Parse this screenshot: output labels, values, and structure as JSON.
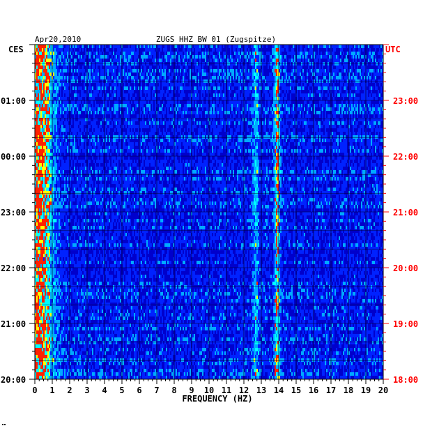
{
  "chart_data": {
    "type": "heatmap",
    "title": "ZUGS HHZ BW 01 (Zugspitze)",
    "date": "Apr20,2010",
    "xlabel": "FREQUENCY (HZ)",
    "xlim": [
      0,
      20
    ],
    "x_ticks": [
      "0",
      "1",
      "2",
      "3",
      "4",
      "5",
      "6",
      "7",
      "8",
      "9",
      "10",
      "11",
      "12",
      "13",
      "14",
      "15",
      "16",
      "17",
      "18",
      "19",
      "20"
    ],
    "left_axis": {
      "label": "CES",
      "ticks": [
        "01:00",
        "00:00",
        "23:00",
        "22:00",
        "21:00",
        "20:00"
      ]
    },
    "right_axis": {
      "label": "UTC",
      "ticks": [
        "23:00",
        "22:00",
        "21:00",
        "20:00",
        "19:00",
        "18:00"
      ]
    },
    "spectral_features": [
      {
        "frequency_hz": 0.3,
        "intensity": "high"
      },
      {
        "frequency_hz": 12.7,
        "intensity": "medium"
      },
      {
        "frequency_hz": 13.9,
        "intensity": "high"
      }
    ],
    "colors": {
      "background": "#0000cc",
      "low": "#0022ff",
      "mid": "#00aaff",
      "high": "#00ffff",
      "peak": "#ffff00",
      "max": "#ff2200",
      "left_axis": "#000000",
      "right_axis": "#ff0000"
    }
  }
}
